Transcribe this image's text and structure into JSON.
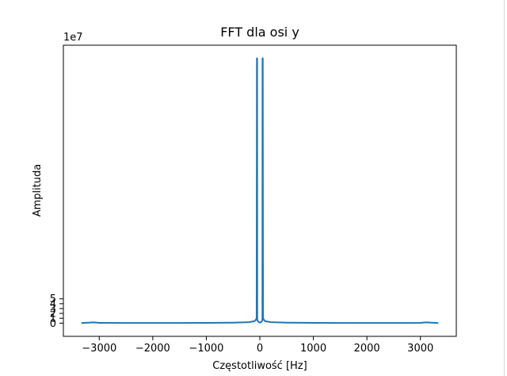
{
  "chart_data": {
    "type": "line",
    "title": "FFT dla osi y",
    "xlabel": "Częstotliwość [Hz]",
    "ylabel": "Amplituda",
    "y_offset_text": "1e7",
    "y_scale_factor": 10000000,
    "xlim": [
      -3670,
      3670
    ],
    "ylim": [
      -2.72,
      57.2
    ],
    "x_ticks": [
      -3000,
      -2000,
      -1000,
      0,
      1000,
      2000,
      3000
    ],
    "x_tick_labels": [
      "−3000",
      "−2000",
      "−1000",
      "0",
      "1000",
      "2000",
      "3000"
    ],
    "y_ticks": [
      0,
      1,
      2,
      3,
      4,
      5
    ],
    "y_tick_labels": [
      "0",
      "1",
      "2",
      "3",
      "4",
      "5"
    ],
    "grid": false,
    "series": [
      {
        "color": "#1f77b4",
        "x": [
          -3333,
          -3200,
          -3100,
          -3000,
          -2500,
          -2000,
          -1500,
          -1000,
          -500,
          -200,
          -100,
          -80,
          -60,
          -55,
          -50,
          -48,
          -45,
          -40,
          -30,
          -20,
          -10,
          0,
          10,
          20,
          30,
          40,
          45,
          48,
          50,
          55,
          60,
          80,
          100,
          200,
          500,
          1000,
          1500,
          2000,
          2500,
          3000,
          3100,
          3200,
          3333
        ],
        "y": [
          0.02,
          0.1,
          0.15,
          0.05,
          0.03,
          0.03,
          0.03,
          0.05,
          0.1,
          0.2,
          0.4,
          0.6,
          1.0,
          54.5,
          54.5,
          1.0,
          0.6,
          0.4,
          0.3,
          0.2,
          0.15,
          0.1,
          0.15,
          0.2,
          0.3,
          0.4,
          0.6,
          1.0,
          54.5,
          54.5,
          1.0,
          0.6,
          0.4,
          0.2,
          0.1,
          0.05,
          0.03,
          0.03,
          0.03,
          0.05,
          0.15,
          0.1,
          0.02
        ]
      }
    ]
  }
}
